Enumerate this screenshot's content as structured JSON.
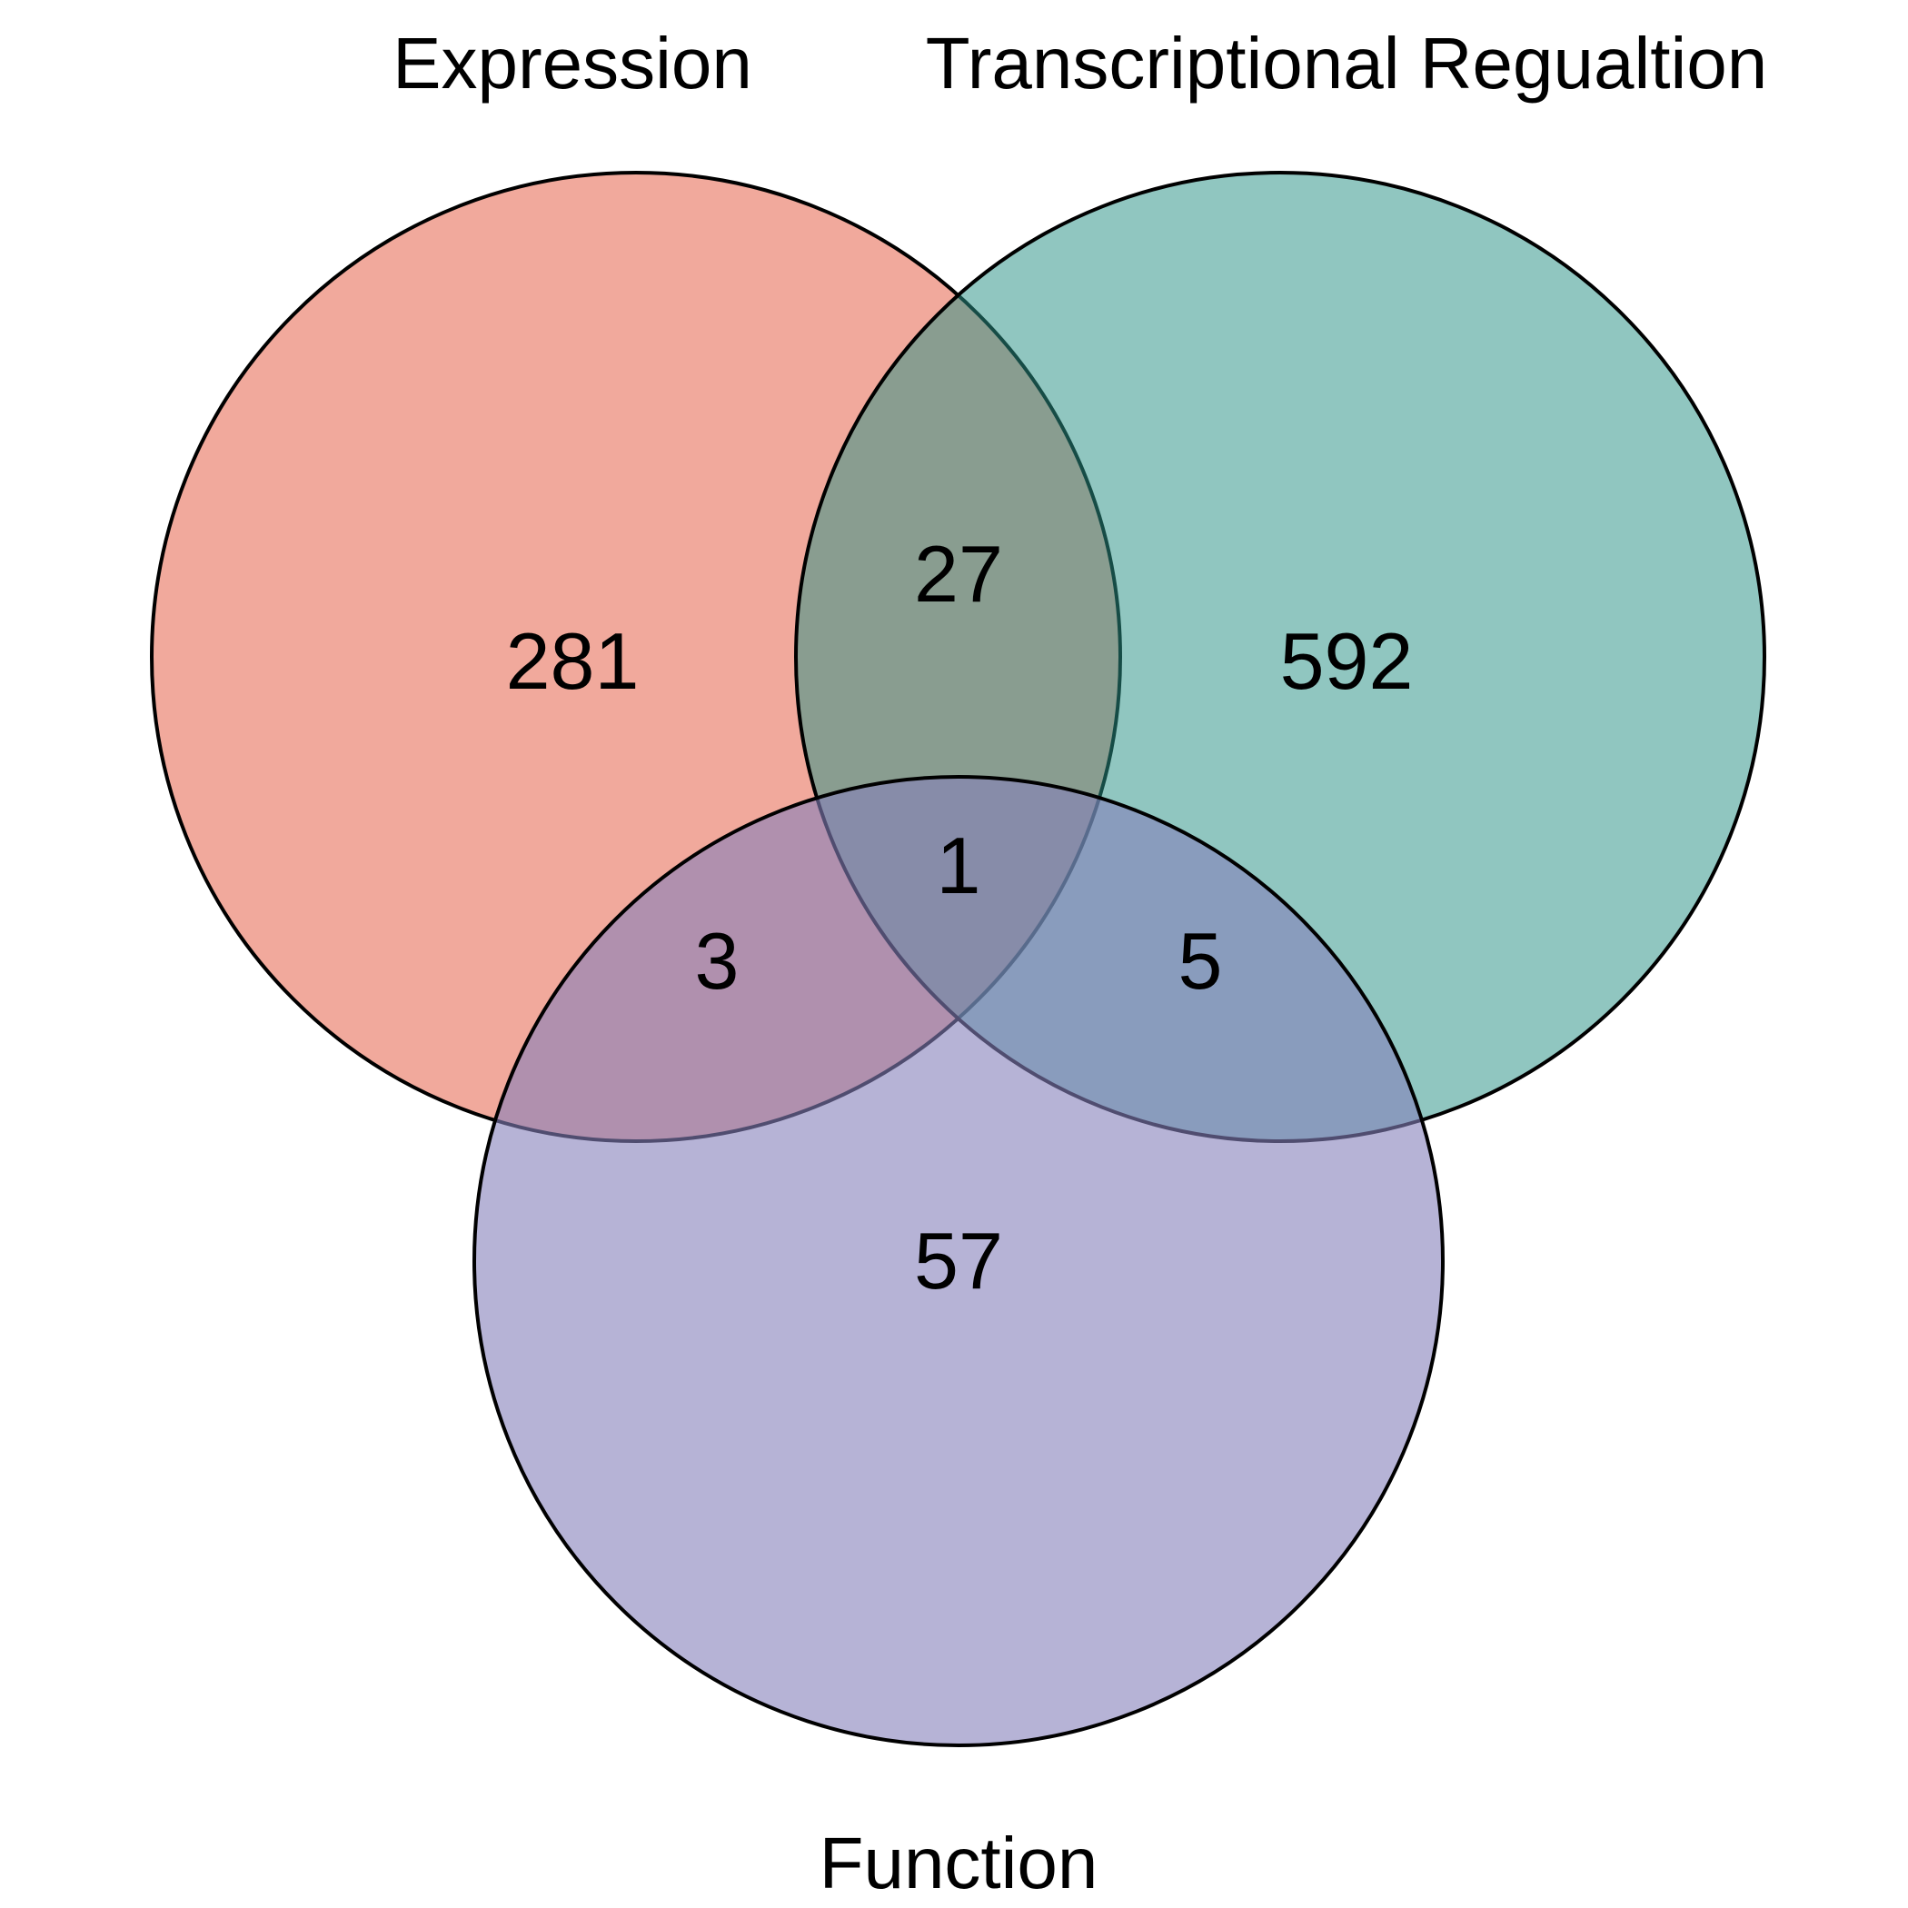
{
  "venn": {
    "sets": [
      {
        "id": "expression",
        "label": "Expression",
        "color": "#E8705A"
      },
      {
        "id": "transcriptional-regulation",
        "label": "Transcriptional Regualtion",
        "color": "#2A9187"
      },
      {
        "id": "function",
        "label": "Function",
        "color": "#8680BB"
      }
    ],
    "regions": {
      "expression_only": "281",
      "transcriptional_only": "592",
      "function_only": "57",
      "expression_transcriptional": "27",
      "expression_function": "3",
      "transcriptional_function": "5",
      "all_three": "1"
    }
  }
}
